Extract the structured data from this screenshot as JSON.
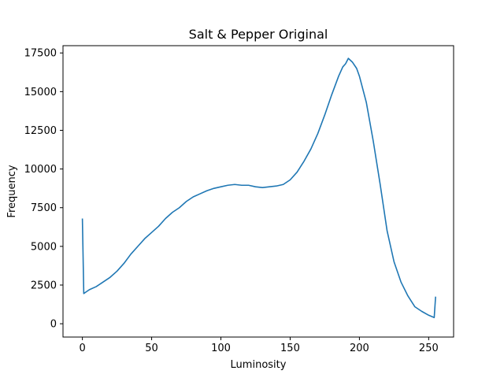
{
  "chart_data": {
    "type": "line",
    "title": "Salt & Pepper Original",
    "xlabel": "Luminosity",
    "ylabel": "Frequency",
    "xlim": [
      -14,
      268
    ],
    "ylim": [
      -860,
      17970
    ],
    "xticks": [
      0,
      50,
      100,
      150,
      200,
      250
    ],
    "xtick_labels": [
      "0",
      "50",
      "100",
      "150",
      "200",
      "250"
    ],
    "yticks": [
      0,
      2500,
      5000,
      7500,
      10000,
      12500,
      15000,
      17500
    ],
    "ytick_labels": [
      "0",
      "2500",
      "5000",
      "7500",
      "10000",
      "12500",
      "15000",
      "17500"
    ],
    "grid": false,
    "series": [
      {
        "color": "#1f77b4",
        "x": [
          0,
          1,
          5,
          10,
          15,
          20,
          25,
          30,
          35,
          40,
          45,
          50,
          55,
          60,
          65,
          70,
          75,
          80,
          85,
          90,
          95,
          100,
          105,
          110,
          115,
          120,
          125,
          130,
          135,
          140,
          145,
          150,
          155,
          160,
          165,
          170,
          175,
          180,
          185,
          188,
          190,
          192,
          195,
          198,
          200,
          205,
          210,
          215,
          220,
          225,
          230,
          235,
          240,
          245,
          250,
          254,
          255
        ],
        "y": [
          6800,
          1950,
          2200,
          2400,
          2700,
          3000,
          3400,
          3900,
          4500,
          5000,
          5500,
          5900,
          6300,
          6800,
          7200,
          7500,
          7900,
          8200,
          8400,
          8600,
          8750,
          8850,
          8950,
          9000,
          8950,
          8950,
          8850,
          8800,
          8850,
          8900,
          9000,
          9300,
          9800,
          10500,
          11300,
          12300,
          13500,
          14800,
          16000,
          16600,
          16800,
          17150,
          16900,
          16500,
          16000,
          14300,
          11800,
          9000,
          6000,
          4000,
          2700,
          1800,
          1100,
          800,
          550,
          400,
          1750
        ]
      }
    ]
  }
}
